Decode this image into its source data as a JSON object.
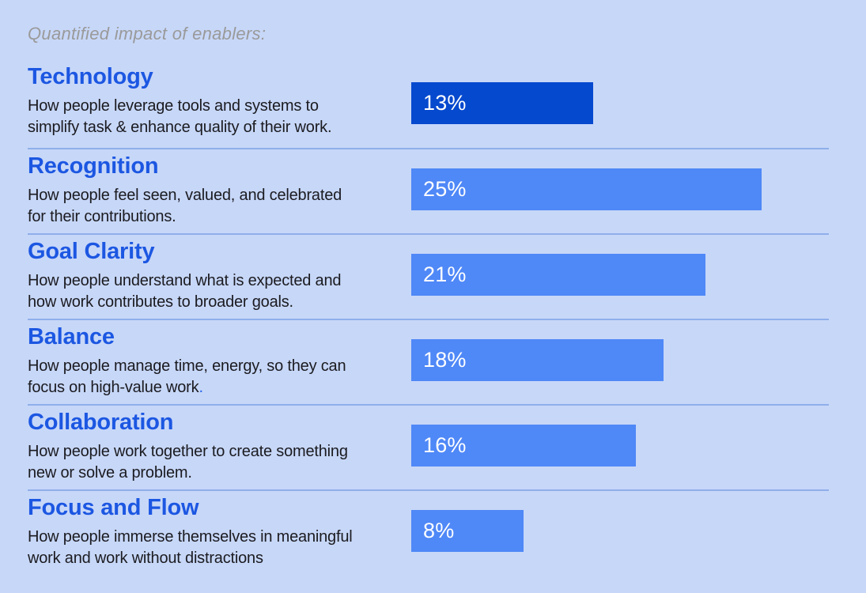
{
  "title": "Quantified impact of enablers:",
  "colors": {
    "background": "#C7D7F8",
    "heading": "#1C57E2",
    "title_gray": "#9A9A9A",
    "body_text": "#1B1B20",
    "divider": "#8FAFEA",
    "bar_highlight": "#0549CE",
    "bar_default": "#4F88F7",
    "bar_label": "#FFFFFF",
    "balance_period": "#2563EB"
  },
  "sections": [
    {
      "heading": "Technology",
      "desc_lines": [
        "How people leverage tools and systems to",
        "simplify task & enhance quality of their work."
      ],
      "value": 13,
      "value_label": "13%",
      "highlight": true,
      "period_colored": false
    },
    {
      "heading": "Recognition",
      "desc_lines": [
        "How people feel seen, valued,  and celebrated",
        "for their contributions."
      ],
      "value": 25,
      "value_label": "25%",
      "highlight": false,
      "period_colored": false
    },
    {
      "heading": "Goal Clarity",
      "desc_lines": [
        "How people understand what is expected and",
        "how work contributes to broader goals."
      ],
      "value": 21,
      "value_label": "21%",
      "highlight": false,
      "period_colored": false
    },
    {
      "heading": "Balance",
      "desc_lines": [
        "How people manage time, energy, so they can",
        "focus on high-value work."
      ],
      "value": 18,
      "value_label": "18%",
      "highlight": false,
      "period_colored": true
    },
    {
      "heading": "Collaboration",
      "desc_lines": [
        "How people work together to create something",
        "new or solve a problem."
      ],
      "value": 16,
      "value_label": "16%",
      "highlight": false,
      "period_colored": false
    },
    {
      "heading": "Focus and Flow",
      "desc_lines": [
        "How people immerse themselves in meaningful",
        "work and work without distractions"
      ],
      "value": 8,
      "value_label": "8%",
      "highlight": false,
      "period_colored": false
    }
  ],
  "chart_data": {
    "type": "bar",
    "orientation": "horizontal",
    "title": "Quantified impact of enablers:",
    "categories": [
      "Technology",
      "Recognition",
      "Goal Clarity",
      "Balance",
      "Collaboration",
      "Focus and Flow"
    ],
    "values": [
      13,
      25,
      21,
      18,
      16,
      8
    ],
    "value_labels": [
      "13%",
      "25%",
      "21%",
      "18%",
      "16%",
      "8%"
    ],
    "unit": "%",
    "descriptions": [
      "How people leverage tools and systems to simplify task & enhance quality of their work.",
      "How people feel seen, valued,  and celebrated for their contributions.",
      "How people understand what is expected and how work contributes to broader goals.",
      "How people manage time, energy, so they can focus on high-value work.",
      "How people work together to create something new or solve a problem.",
      "How people immerse themselves in meaningful work and work without distractions"
    ],
    "highlight_index": 0,
    "bar_colors": [
      "#0549CE",
      "#4F88F7",
      "#4F88F7",
      "#4F88F7",
      "#4F88F7",
      "#4F88F7"
    ],
    "xlim": [
      0,
      25
    ],
    "grid": false,
    "legend": false,
    "value_label_position": "inside-left"
  }
}
